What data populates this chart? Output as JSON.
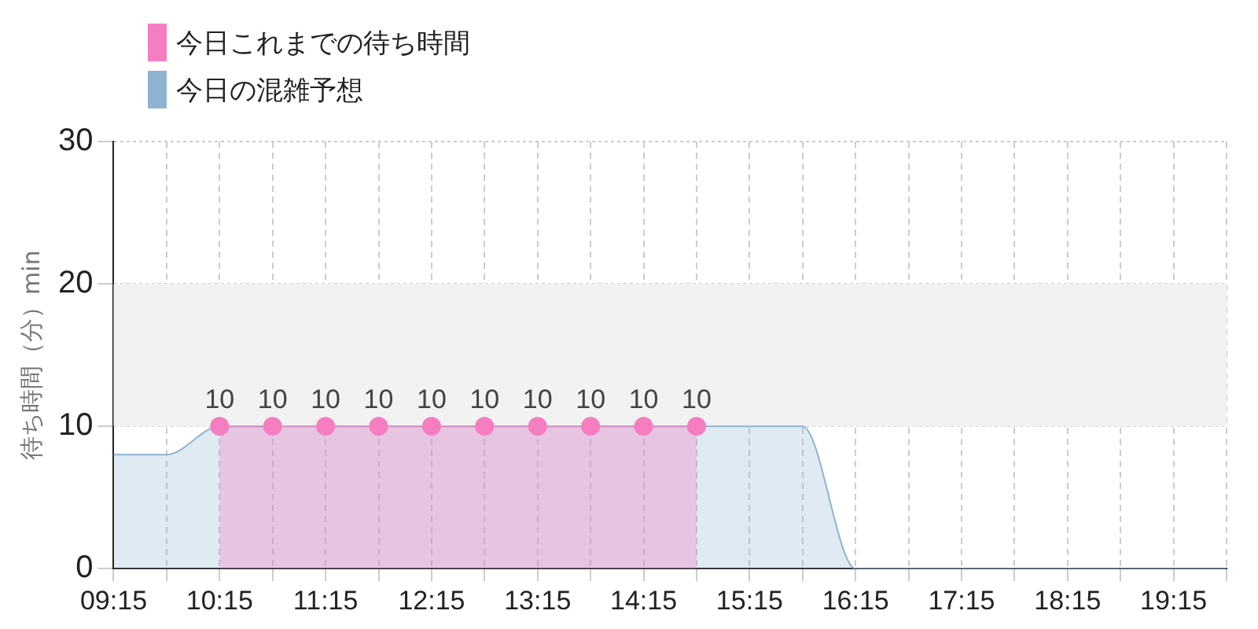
{
  "chart_data": {
    "type": "area",
    "ylabel": "待ち時間（分）min",
    "categories": [
      "09:15",
      null,
      "10:15",
      null,
      "11:15",
      null,
      "12:15",
      null,
      "13:15",
      null,
      "14:15",
      null,
      "15:15",
      null,
      "16:15",
      null,
      "17:15",
      null,
      "18:15",
      null,
      "19:15",
      null
    ],
    "series": [
      {
        "name": "今日これまでの待ち時間",
        "color": "#f47ebf",
        "marker": "circle",
        "values": [
          null,
          null,
          10,
          10,
          10,
          10,
          10,
          10,
          10,
          10,
          10,
          10,
          null,
          null,
          null,
          null,
          null,
          null,
          null,
          null,
          null,
          null
        ],
        "value_labels": [
          null,
          null,
          "10",
          "10",
          "10",
          "10",
          "10",
          "10",
          "10",
          "10",
          "10",
          "10",
          null,
          null,
          null,
          null,
          null,
          null,
          null,
          null,
          null,
          null
        ]
      },
      {
        "name": "今日の混雑予想",
        "color": "#8fb3d3",
        "marker": "none",
        "values": [
          8,
          8,
          10,
          10,
          10,
          10,
          10,
          10,
          10,
          10,
          10,
          10,
          10,
          10,
          0,
          0,
          0,
          0,
          0,
          0,
          0,
          0
        ]
      }
    ],
    "ylim": [
      0,
      30
    ],
    "yticks": [
      0,
      10,
      20,
      30
    ],
    "bands": [
      {
        "axis": "y",
        "from": 10,
        "to": 20,
        "color": "#f2f2f2"
      }
    ],
    "grid": true,
    "legend": "top left"
  }
}
